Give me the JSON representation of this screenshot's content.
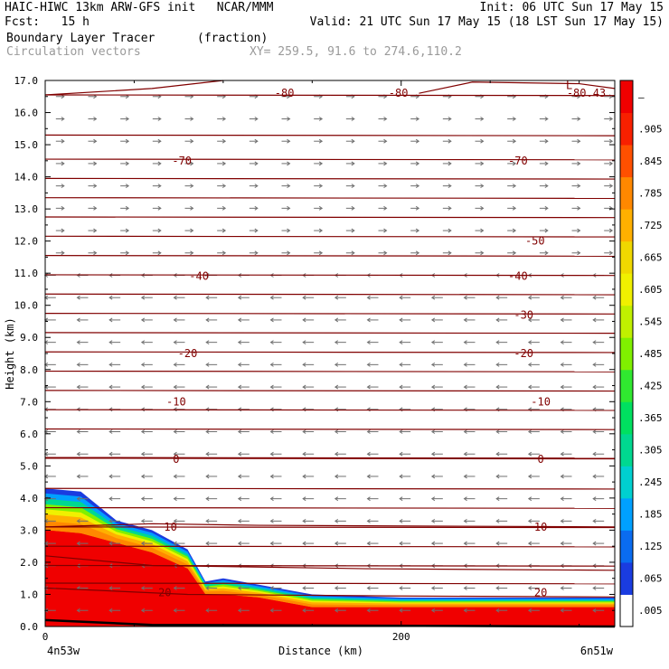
{
  "header": {
    "line1_left": "HAIC-HIWC 13km ARW-GFS init   NCAR/MMM",
    "line1_right": "Init: 06 UTC Sun 17 May 15",
    "line2_left": "Fcst:   15 h",
    "line2_right": "Valid: 21 UTC Sun 17 May 15 (18 LST Sun 17 May 15)",
    "line3_left": "Boundary Layer Tracer",
    "line3_units": "(fraction)",
    "line4_left": "Circulation vectors",
    "line4_xy": "XY= 259.5, 91.6 to 274.6,110.2"
  },
  "chart_data": {
    "type": "heatmap",
    "title": "Boundary Layer Tracer",
    "units": "(fraction)",
    "xlabel": "Distance (km)",
    "ylabel": "Height (km)",
    "xlim": [
      0,
      320
    ],
    "ylim": [
      0.0,
      17.0
    ],
    "x_ticks": [
      0,
      200
    ],
    "x_end_labels": [
      "4n53w",
      "6n51w"
    ],
    "y_ticks": [
      "0.0",
      "1.0",
      "2.0",
      "3.0",
      "4.0",
      "5.0",
      "6.0",
      "7.0",
      "8.0",
      "9.0",
      "10.0",
      "11.0",
      "12.0",
      "13.0",
      "14.0",
      "15.0",
      "16.0",
      "17.0"
    ],
    "colorbar_labels": [
      ".005",
      ".065",
      ".125",
      ".185",
      ".245",
      ".305",
      ".365",
      ".425",
      ".485",
      ".545",
      ".605",
      ".665",
      ".725",
      ".785",
      ".845",
      ".905",
      "–"
    ],
    "colorbar_colors": [
      "#ffffff",
      "#1a3ce0",
      "#0a6cf0",
      "#00a0ff",
      "#00d0d0",
      "#00d890",
      "#00e060",
      "#30e830",
      "#80f000",
      "#c0f000",
      "#f0f000",
      "#f0d800",
      "#ffb000",
      "#ff8800",
      "#ff5000",
      "#f82000",
      "#f00000"
    ],
    "tracer_profile": {
      "x": [
        0,
        20,
        40,
        60,
        80,
        90,
        100,
        120,
        150,
        200,
        250,
        320
      ],
      "top_km": [
        4.3,
        4.2,
        3.3,
        3.0,
        2.4,
        1.4,
        1.5,
        1.3,
        1.0,
        0.9,
        0.9,
        0.9
      ],
      "core_top_km": [
        3.0,
        2.9,
        2.6,
        2.3,
        1.8,
        1.0,
        1.0,
        0.9,
        0.6,
        0.6,
        0.6,
        0.6
      ]
    },
    "temperature_contours": [
      {
        "label": "-80",
        "level_km": 16.6,
        "label_positions": [
          0.42,
          0.62
        ]
      },
      {
        "label": "-80.43",
        "level_km": 16.6,
        "label_positions": [
          0.95
        ]
      },
      {
        "label": "L",
        "level_km": 16.85,
        "label_positions": [
          0.92
        ]
      },
      {
        "label": "-70",
        "level_km": 14.5,
        "label_positions": [
          0.24,
          0.83
        ]
      },
      {
        "label": "-50",
        "level_km": 12.0,
        "label_positions": [
          0.86
        ]
      },
      {
        "label": "-40",
        "level_km": 10.9,
        "label_positions": [
          0.27,
          0.83
        ]
      },
      {
        "label": "-30",
        "level_km": 9.7,
        "label_positions": [
          0.84
        ]
      },
      {
        "label": "-20",
        "level_km": 8.5,
        "label_positions": [
          0.25,
          0.84
        ]
      },
      {
        "label": "-10",
        "level_km": 7.0,
        "label_positions": [
          0.23,
          0.87
        ]
      },
      {
        "label": "0",
        "level_km": 5.2,
        "label_positions": [
          0.23,
          0.87
        ]
      },
      {
        "label": "10",
        "level_km": 3.1,
        "label_positions": [
          0.22,
          0.87
        ]
      },
      {
        "label": "20",
        "level_km": 1.05,
        "label_positions": [
          0.21,
          0.87
        ]
      }
    ],
    "vectors": {
      "description_levels_km": [
        0.5,
        17.0
      ],
      "upper_direction": "east",
      "lower_direction": "west",
      "reversal_km": 11.0
    }
  }
}
